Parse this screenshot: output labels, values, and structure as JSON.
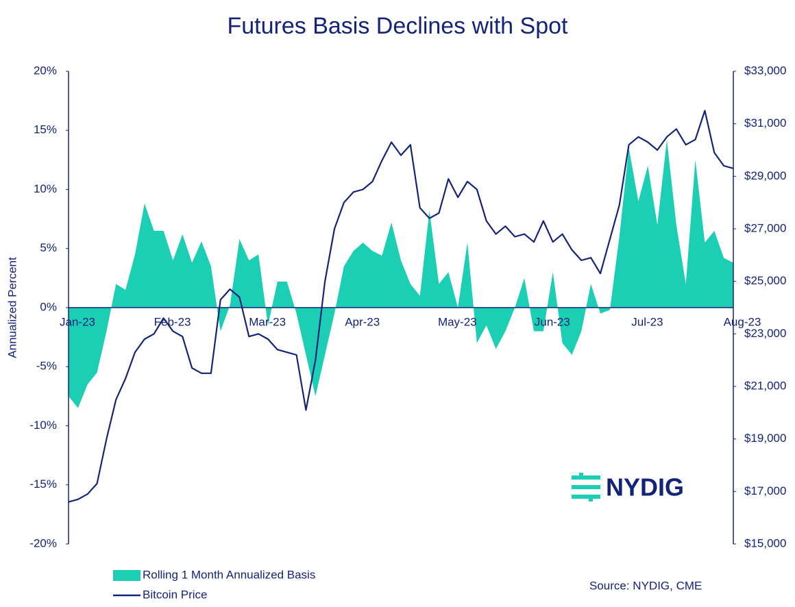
{
  "chart_data": {
    "type": "combo",
    "title": "Futures Basis Declines with Spot",
    "y_label": "Annualized Percent",
    "source": "Source: NYDIG, CME",
    "logo": "NYDIG",
    "categories": [
      "Jan-23",
      null,
      null,
      null,
      null,
      null,
      null,
      null,
      null,
      null,
      "Feb-23",
      null,
      null,
      null,
      null,
      null,
      null,
      null,
      null,
      null,
      "Mar-23",
      null,
      null,
      null,
      null,
      null,
      null,
      null,
      null,
      null,
      "Apr-23",
      null,
      null,
      null,
      null,
      null,
      null,
      null,
      null,
      null,
      "May-23",
      null,
      null,
      null,
      null,
      null,
      null,
      null,
      null,
      null,
      "Jun-23",
      null,
      null,
      null,
      null,
      null,
      null,
      null,
      null,
      null,
      "Jul-23",
      null,
      null,
      null,
      null,
      null,
      null,
      null,
      null,
      null,
      "Aug-23"
    ],
    "ylim": [
      -20,
      20
    ],
    "yticks": [
      {
        "value": -20,
        "label": "-20%"
      },
      {
        "value": -15,
        "label": "-15%"
      },
      {
        "value": -10,
        "label": "-10%"
      },
      {
        "value": -5,
        "label": "-5%"
      },
      {
        "value": 0,
        "label": "0%"
      },
      {
        "value": 5,
        "label": "5%"
      },
      {
        "value": 10,
        "label": "10%"
      },
      {
        "value": 15,
        "label": "15%"
      },
      {
        "value": 20,
        "label": "20%"
      }
    ],
    "y2lim": [
      15000,
      33000
    ],
    "y2ticks": [
      {
        "value": 15000,
        "label": "$15,000"
      },
      {
        "value": 17000,
        "label": "$17,000"
      },
      {
        "value": 19000,
        "label": "$19,000"
      },
      {
        "value": 21000,
        "label": "$21,000"
      },
      {
        "value": 23000,
        "label": "$23,000"
      },
      {
        "value": 25000,
        "label": "$25,000"
      },
      {
        "value": 27000,
        "label": "$27,000"
      },
      {
        "value": 29000,
        "label": "$29,000"
      },
      {
        "value": 31000,
        "label": "$31,000"
      },
      {
        "value": 33000,
        "label": "$33,000"
      }
    ],
    "series": [
      {
        "name": "Rolling 1 Month Annualized Basis",
        "type": "area",
        "axis": "y",
        "color": "#1ccfb4",
        "values": [
          -7.5,
          -8.5,
          -6.5,
          -5.5,
          -2,
          2,
          1.5,
          4.5,
          8.8,
          6.5,
          6.5,
          4,
          6.2,
          3.8,
          5.6,
          3.5,
          -2,
          0.2,
          5.8,
          4,
          4.5,
          -1.5,
          2.2,
          2.2,
          -0.5,
          -4,
          -7.5,
          -4,
          -0.5,
          3.5,
          4.8,
          5.5,
          4.8,
          4.4,
          7.2,
          4,
          2,
          1,
          8.2,
          2,
          3,
          0,
          5.5,
          -3,
          -1.5,
          -3.5,
          -2,
          0,
          2.5,
          -2,
          -2,
          3,
          -3,
          -4,
          -2,
          2,
          -0.5,
          -0.2,
          6,
          13.5,
          9,
          12,
          7,
          14.2,
          7,
          2,
          12.5,
          5.5,
          6.5,
          4.2,
          3.8
        ]
      },
      {
        "name": "Bitcoin Price",
        "type": "line",
        "axis": "y2",
        "color": "#14237a",
        "values": [
          16600,
          16700,
          16900,
          17300,
          19000,
          20500,
          21300,
          22300,
          22800,
          23000,
          23600,
          23100,
          22900,
          21700,
          21500,
          21500,
          24300,
          24700,
          24400,
          22900,
          23000,
          22800,
          22400,
          22300,
          22200,
          20100,
          22000,
          25000,
          27000,
          28000,
          28400,
          28500,
          28800,
          29600,
          30300,
          29800,
          30200,
          27800,
          27400,
          27600,
          28900,
          28200,
          28800,
          28500,
          27300,
          26800,
          27100,
          26700,
          26800,
          26500,
          27300,
          26500,
          26800,
          26200,
          25800,
          25900,
          25300,
          26600,
          27900,
          30200,
          30500,
          30300,
          30000,
          30500,
          30800,
          30200,
          30400,
          31500,
          29900,
          29400,
          29300
        ]
      }
    ]
  }
}
